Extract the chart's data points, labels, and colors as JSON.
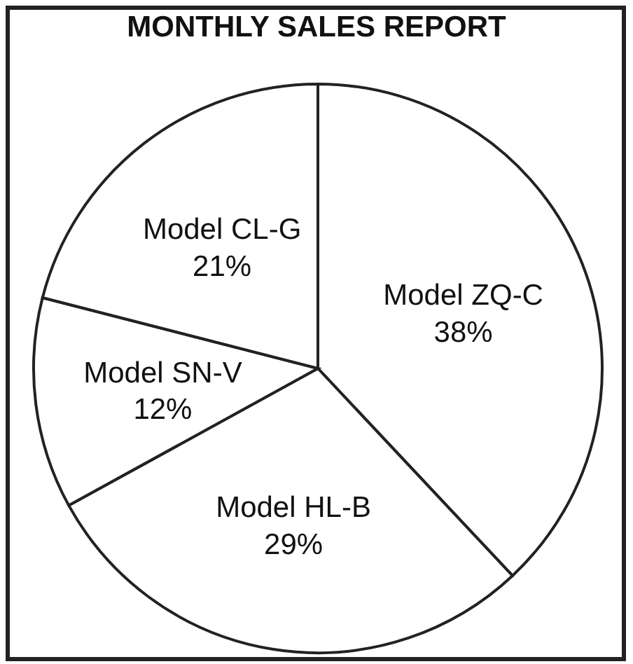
{
  "chart_data": {
    "type": "pie",
    "title": "MONTHLY SALES REPORT",
    "categories": [
      "Model ZQ-C",
      "Model HL-B",
      "Model SN-V",
      "Model CL-G"
    ],
    "values": [
      38,
      29,
      12,
      21
    ],
    "value_labels": [
      "38%",
      "29%",
      "12%",
      "21%"
    ],
    "colors": [
      "#ffffff",
      "#ffffff",
      "#ffffff",
      "#ffffff"
    ],
    "legend": false
  }
}
